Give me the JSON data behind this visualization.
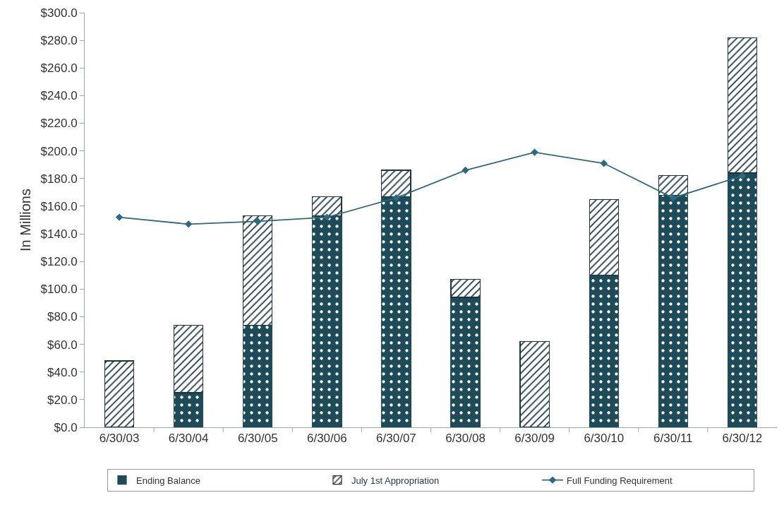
{
  "chart_data": {
    "type": "bar",
    "ylabel": "In Millions",
    "stacked": true,
    "legend": "bottom",
    "grid": false,
    "marker": "diamond",
    "categories": [
      "6/30/03",
      "6/30/04",
      "6/30/05",
      "6/30/06",
      "6/30/07",
      "6/30/08",
      "6/30/09",
      "6/30/10",
      "6/30/11",
      "6/30/12"
    ],
    "series": [
      {
        "name": "Ending Balance",
        "color": "#1d4b58",
        "values": [
          0,
          25,
          74,
          153,
          167,
          94,
          0,
          110,
          168,
          184
        ]
      },
      {
        "name": "July 1st Appropriation",
        "color": "#1d3540",
        "values": [
          48,
          49,
          79,
          14,
          19,
          13,
          62,
          55,
          14,
          98
        ]
      },
      {
        "name": "Full Funding Requirement",
        "type": "line",
        "color": "#2b6a80",
        "values": [
          152,
          147,
          149,
          152,
          166,
          186,
          199,
          191,
          166,
          182
        ]
      }
    ],
    "ylim": [
      0,
      300
    ],
    "yticks": [
      {
        "value": 0,
        "label": "$0.0"
      },
      {
        "value": 20,
        "label": "$20.0"
      },
      {
        "value": 40,
        "label": "$40.0"
      },
      {
        "value": 60,
        "label": "$60.0"
      },
      {
        "value": 80,
        "label": "$80.0"
      },
      {
        "value": 100,
        "label": "$100.0"
      },
      {
        "value": 120,
        "label": "$120.0"
      },
      {
        "value": 140,
        "label": "$140.0"
      },
      {
        "value": 160,
        "label": "$160.0"
      },
      {
        "value": 180,
        "label": "$180.0"
      },
      {
        "value": 200,
        "label": "$200.0"
      },
      {
        "value": 220,
        "label": "$220.0"
      },
      {
        "value": 240,
        "label": "$240.0"
      },
      {
        "value": 260,
        "label": "$260.0"
      },
      {
        "value": 280,
        "label": "$280.0"
      },
      {
        "value": 300,
        "label": "$300.0"
      }
    ]
  }
}
